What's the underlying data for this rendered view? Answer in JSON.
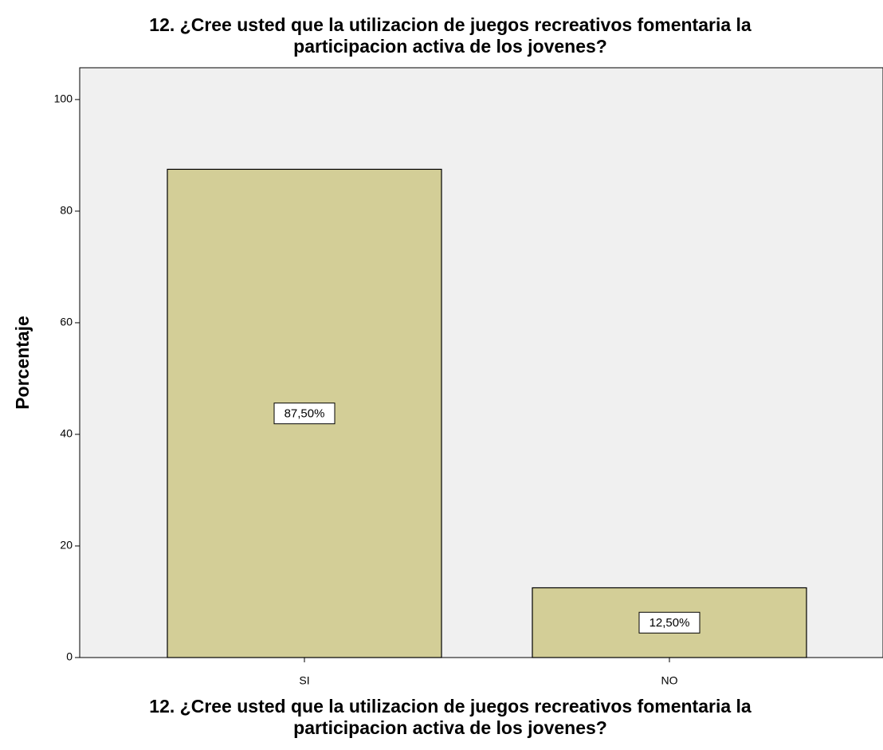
{
  "chart_data": {
    "type": "bar",
    "title": [
      "12. ¿Cree usted que la utilizacion de juegos recreativos fomentaria la",
      "participacion activa de los jovenes?"
    ],
    "x_label": [
      "12. ¿Cree usted que la utilizacion de juegos recreativos fomentaria la",
      "participacion activa de los jovenes?"
    ],
    "y_label": "Porcentaje",
    "categories": [
      "SI",
      "NO"
    ],
    "values": [
      87.5,
      12.5
    ],
    "value_labels": [
      "87,50%",
      "12,50%"
    ],
    "color": "#d3ce97",
    "ylim": [
      0,
      105.7
    ],
    "yticks": [
      0,
      20,
      40,
      60,
      80,
      100
    ]
  }
}
